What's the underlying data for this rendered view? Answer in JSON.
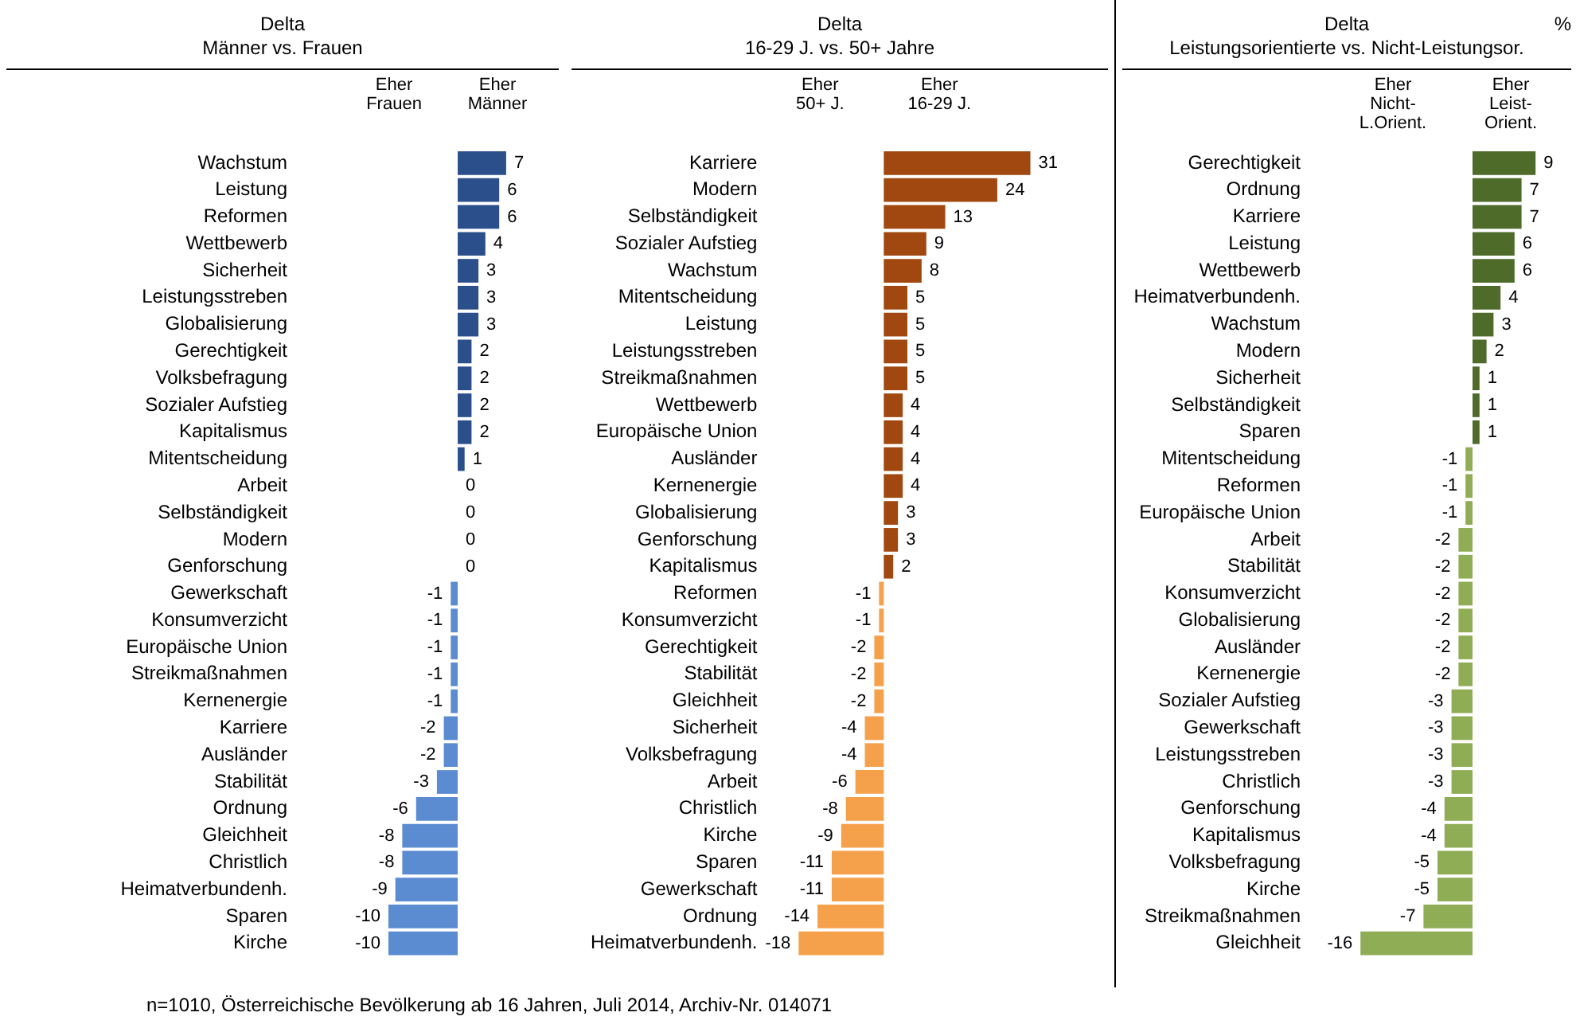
{
  "chart_data": [
    {
      "type": "bar",
      "orientation": "horizontal",
      "title": "Delta\nMänner vs. Frauen",
      "tick_labels": "y",
      "data_labels": true,
      "categories": [
        "Wachstum",
        "Leistung",
        "Reformen",
        "Wettbewerb",
        "Sicherheit",
        "Leistungsstreben",
        "Globalisierung",
        "Gerechtigkeit",
        "Volksbefragung",
        "Sozialer Aufstieg",
        "Kapitalismus",
        "Mitentscheidung",
        "Arbeit",
        "Selbständigkeit",
        "Modern",
        "Genforschung",
        "Gewerkschaft",
        "Konsumverzicht",
        "Europäische Union",
        "Streikmaßnahmen",
        "Kernenergie",
        "Karriere",
        "Ausländer",
        "Stabilität",
        "Ordnung",
        "Gleichheit",
        "Christlich",
        "Heimatverbundenh.",
        "Sparen",
        "Kirche"
      ],
      "values": [
        7,
        6,
        6,
        4,
        3,
        3,
        3,
        2,
        2,
        2,
        2,
        1,
        0,
        0,
        0,
        0,
        -1,
        -1,
        -1,
        -1,
        -1,
        -2,
        -2,
        -3,
        -6,
        -8,
        -8,
        -9,
        -10,
        -10
      ],
      "colors": [
        "#2a4f8a",
        "#2a4f8a",
        "#2a4f8a",
        "#2a4f8a",
        "#2a4f8a",
        "#2a4f8a",
        "#2a4f8a",
        "#2a4f8a",
        "#2a4f8a",
        "#2a4f8a",
        "#2a4f8a",
        "#2a4f8a",
        "#2a4f8a",
        "#2a4f8a",
        "#2a4f8a",
        "#2a4f8a",
        "#5b8bd0",
        "#5b8bd0",
        "#5b8bd0",
        "#5b8bd0",
        "#5b8bd0",
        "#5b8bd0",
        "#5b8bd0",
        "#5b8bd0",
        "#5b8bd0",
        "#5b8bd0",
        "#5b8bd0",
        "#5b8bd0",
        "#5b8bd0",
        "#5b8bd0"
      ],
      "annotations": [
        "Eher\nFrauen",
        "Eher\nMänner",
        "n=1010, Österreichische Bevölkerung ab 16 Jahren, Juli 2014, Archiv-Nr. 014071"
      ]
    },
    {
      "type": "bar",
      "orientation": "horizontal",
      "title": "Delta\n16-29 J. vs. 50+ Jahre",
      "tick_labels": "y",
      "data_labels": true,
      "categories": [
        "Karriere",
        "Modern",
        "Selbständigkeit",
        "Sozialer Aufstieg",
        "Wachstum",
        "Mitentscheidung",
        "Leistung",
        "Leistungsstreben",
        "Streikmaßnahmen",
        "Wettbewerb",
        "Europäische Union",
        "Ausländer",
        "Kernenergie",
        "Globalisierung",
        "Genforschung",
        "Kapitalismus",
        "Reformen",
        "Konsumverzicht",
        "Gerechtigkeit",
        "Stabilität",
        "Gleichheit",
        "Sicherheit",
        "Volksbefragung",
        "Arbeit",
        "Christlich",
        "Kirche",
        "Sparen",
        "Gewerkschaft",
        "Ordnung",
        "Heimatverbundenh."
      ],
      "values": [
        31,
        24,
        13,
        9,
        8,
        5,
        5,
        5,
        5,
        4,
        4,
        4,
        4,
        3,
        3,
        2,
        -1,
        -1,
        -2,
        -2,
        -2,
        -4,
        -4,
        -6,
        -8,
        -9,
        -11,
        -11,
        -14,
        -18
      ],
      "colors": [
        "#a0480f",
        "#a0480f",
        "#a0480f",
        "#a0480f",
        "#a0480f",
        "#a0480f",
        "#a0480f",
        "#a0480f",
        "#a0480f",
        "#a0480f",
        "#a0480f",
        "#a0480f",
        "#a0480f",
        "#a0480f",
        "#a0480f",
        "#a0480f",
        "#f5a04a",
        "#f5a04a",
        "#f5a04a",
        "#f5a04a",
        "#f5a04a",
        "#f5a04a",
        "#f5a04a",
        "#f5a04a",
        "#f5a04a",
        "#f5a04a",
        "#f5a04a",
        "#f5a04a",
        "#f5a04a",
        "#f5a04a"
      ],
      "annotations": [
        "Eher\n50+ J.",
        "Eher\n16-29 J."
      ]
    },
    {
      "type": "bar",
      "orientation": "horizontal",
      "title": "Delta\nLeistungsorientierte vs. Nicht-Leistungsor.",
      "tick_labels": "y",
      "data_labels": true,
      "categories": [
        "Gerechtigkeit",
        "Ordnung",
        "Karriere",
        "Leistung",
        "Wettbewerb",
        "Heimatverbundenh.",
        "Wachstum",
        "Modern",
        "Sicherheit",
        "Selbständigkeit",
        "Sparen",
        "Mitentscheidung",
        "Reformen",
        "Europäische Union",
        "Arbeit",
        "Stabilität",
        "Konsumverzicht",
        "Globalisierung",
        "Ausländer",
        "Kernenergie",
        "Sozialer Aufstieg",
        "Gewerkschaft",
        "Leistungsstreben",
        "Christlich",
        "Genforschung",
        "Kapitalismus",
        "Volksbefragung",
        "Kirche",
        "Streikmaßnahmen",
        "Gleichheit"
      ],
      "values": [
        9,
        7,
        7,
        6,
        6,
        4,
        3,
        2,
        1,
        1,
        1,
        -1,
        -1,
        -1,
        -2,
        -2,
        -2,
        -2,
        -2,
        -2,
        -3,
        -3,
        -3,
        -3,
        -4,
        -4,
        -5,
        -5,
        -7,
        -16
      ],
      "colors": [
        "#4e6b2a",
        "#4e6b2a",
        "#4e6b2a",
        "#4e6b2a",
        "#4e6b2a",
        "#4e6b2a",
        "#4e6b2a",
        "#4e6b2a",
        "#4e6b2a",
        "#4e6b2a",
        "#4e6b2a",
        "#8fad55",
        "#8fad55",
        "#8fad55",
        "#8fad55",
        "#8fad55",
        "#8fad55",
        "#8fad55",
        "#8fad55",
        "#8fad55",
        "#8fad55",
        "#8fad55",
        "#8fad55",
        "#8fad55",
        "#8fad55",
        "#8fad55",
        "#8fad55",
        "#8fad55",
        "#8fad55",
        "#8fad55"
      ],
      "annotations": [
        "Eher\nNicht-\nL.Orient.",
        "Eher\nLeist-\nOrient.",
        "%"
      ]
    }
  ]
}
